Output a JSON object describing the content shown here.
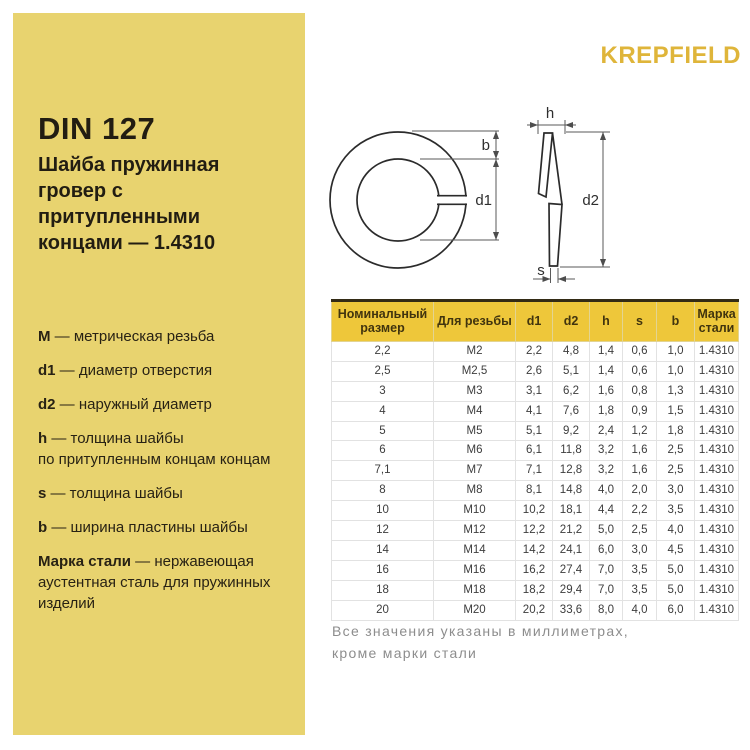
{
  "brand": {
    "name": "KREPFIELD",
    "color": "#dfb53a"
  },
  "panel": {
    "bg_color": "#e8d36f",
    "title": "DIN 127",
    "subtitle": "Шайба пружинная\nгровер с притупленными\nконцами — 1.4310",
    "legend": [
      {
        "term": "M",
        "desc": "— метрическая резьба"
      },
      {
        "term": "d1",
        "desc": "— диаметр отверстия"
      },
      {
        "term": "d2",
        "desc": "— наружный диаметр"
      },
      {
        "term": "h",
        "desc": "— толщина шайбы\nпо притупленным концам концам"
      },
      {
        "term": "s",
        "desc": "— толщина шайбы"
      },
      {
        "term": "b",
        "desc": "— ширина пластины шайбы"
      },
      {
        "term": "Марка стали",
        "desc": "— нержавеющая\nаустентная сталь для пружинных\nизделий"
      }
    ]
  },
  "drawing": {
    "labels": {
      "b": "b",
      "d1": "d1",
      "d2": "d2",
      "h": "h",
      "s": "s"
    }
  },
  "table": {
    "header_bg": "#eec73a",
    "columns": [
      "Номинальный размер",
      "Для резьбы",
      "d1",
      "d2",
      "h",
      "s",
      "b",
      "Марка стали"
    ],
    "rows": [
      [
        "2,2",
        "M2",
        "2,2",
        "4,8",
        "1,4",
        "0,6",
        "1,0",
        "1.4310"
      ],
      [
        "2,5",
        "M2,5",
        "2,6",
        "5,1",
        "1,4",
        "0,6",
        "1,0",
        "1.4310"
      ],
      [
        "3",
        "M3",
        "3,1",
        "6,2",
        "1,6",
        "0,8",
        "1,3",
        "1.4310"
      ],
      [
        "4",
        "M4",
        "4,1",
        "7,6",
        "1,8",
        "0,9",
        "1,5",
        "1.4310"
      ],
      [
        "5",
        "M5",
        "5,1",
        "9,2",
        "2,4",
        "1,2",
        "1,8",
        "1.4310"
      ],
      [
        "6",
        "M6",
        "6,1",
        "11,8",
        "3,2",
        "1,6",
        "2,5",
        "1.4310"
      ],
      [
        "7,1",
        "M7",
        "7,1",
        "12,8",
        "3,2",
        "1,6",
        "2,5",
        "1.4310"
      ],
      [
        "8",
        "M8",
        "8,1",
        "14,8",
        "4,0",
        "2,0",
        "3,0",
        "1.4310"
      ],
      [
        "10",
        "M10",
        "10,2",
        "18,1",
        "4,4",
        "2,2",
        "3,5",
        "1.4310"
      ],
      [
        "12",
        "M12",
        "12,2",
        "21,2",
        "5,0",
        "2,5",
        "4,0",
        "1.4310"
      ],
      [
        "14",
        "M14",
        "14,2",
        "24,1",
        "6,0",
        "3,0",
        "4,5",
        "1.4310"
      ],
      [
        "16",
        "M16",
        "16,2",
        "27,4",
        "7,0",
        "3,5",
        "5,0",
        "1.4310"
      ],
      [
        "18",
        "M18",
        "18,2",
        "29,4",
        "7,0",
        "3,5",
        "5,0",
        "1.4310"
      ],
      [
        "20",
        "M20",
        "20,2",
        "33,6",
        "8,0",
        "4,0",
        "6,0",
        "1.4310"
      ]
    ]
  },
  "note": {
    "text": "Все значения указаны в миллиметрах,\nкроме марки стали"
  }
}
